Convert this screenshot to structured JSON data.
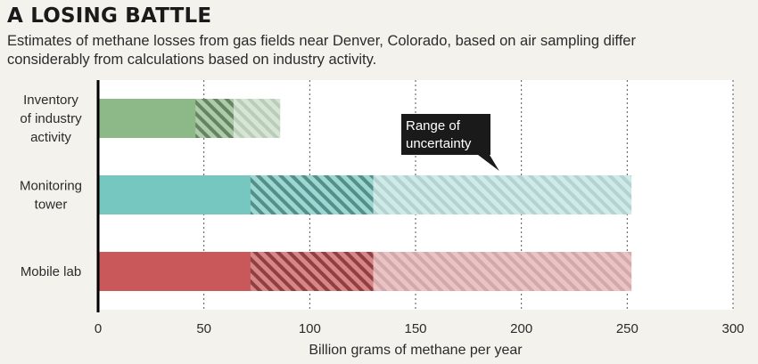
{
  "chart_data": {
    "type": "bar",
    "title": "A LOSING BATTLE",
    "subtitle": "Estimates of methane losses from gas fields near Denver, Colorado, based on air sampling differ considerably from calculations based on industry activity.",
    "xlabel": "Billion grams of methane per year",
    "xlim": [
      0,
      300
    ],
    "xticks": [
      0,
      50,
      100,
      150,
      200,
      250,
      300
    ],
    "grid": true,
    "categories": [
      "Inventory of industry activity",
      "Monitoring tower",
      "Mobile lab"
    ],
    "category_lines": [
      [
        "Inventory",
        "of industry",
        "activity"
      ],
      [
        "Monitoring",
        "tower"
      ],
      [
        "Mobile lab"
      ]
    ],
    "series": [
      {
        "category": "Inventory of industry activity",
        "value": 64,
        "uncertainty_low": 46,
        "uncertainty_high": 86,
        "color": "#8db888"
      },
      {
        "category": "Monitoring tower",
        "value": 130,
        "uncertainty_low": 72,
        "uncertainty_high": 252,
        "color": "#76c7c0"
      },
      {
        "category": "Mobile lab",
        "value": 130,
        "uncertainty_low": 72,
        "uncertainty_high": 252,
        "color": "#c9585a"
      }
    ],
    "annotation": {
      "lines": [
        "Range of",
        "uncertainty"
      ],
      "points_to": "Monitoring tower",
      "at_value": 195
    }
  }
}
